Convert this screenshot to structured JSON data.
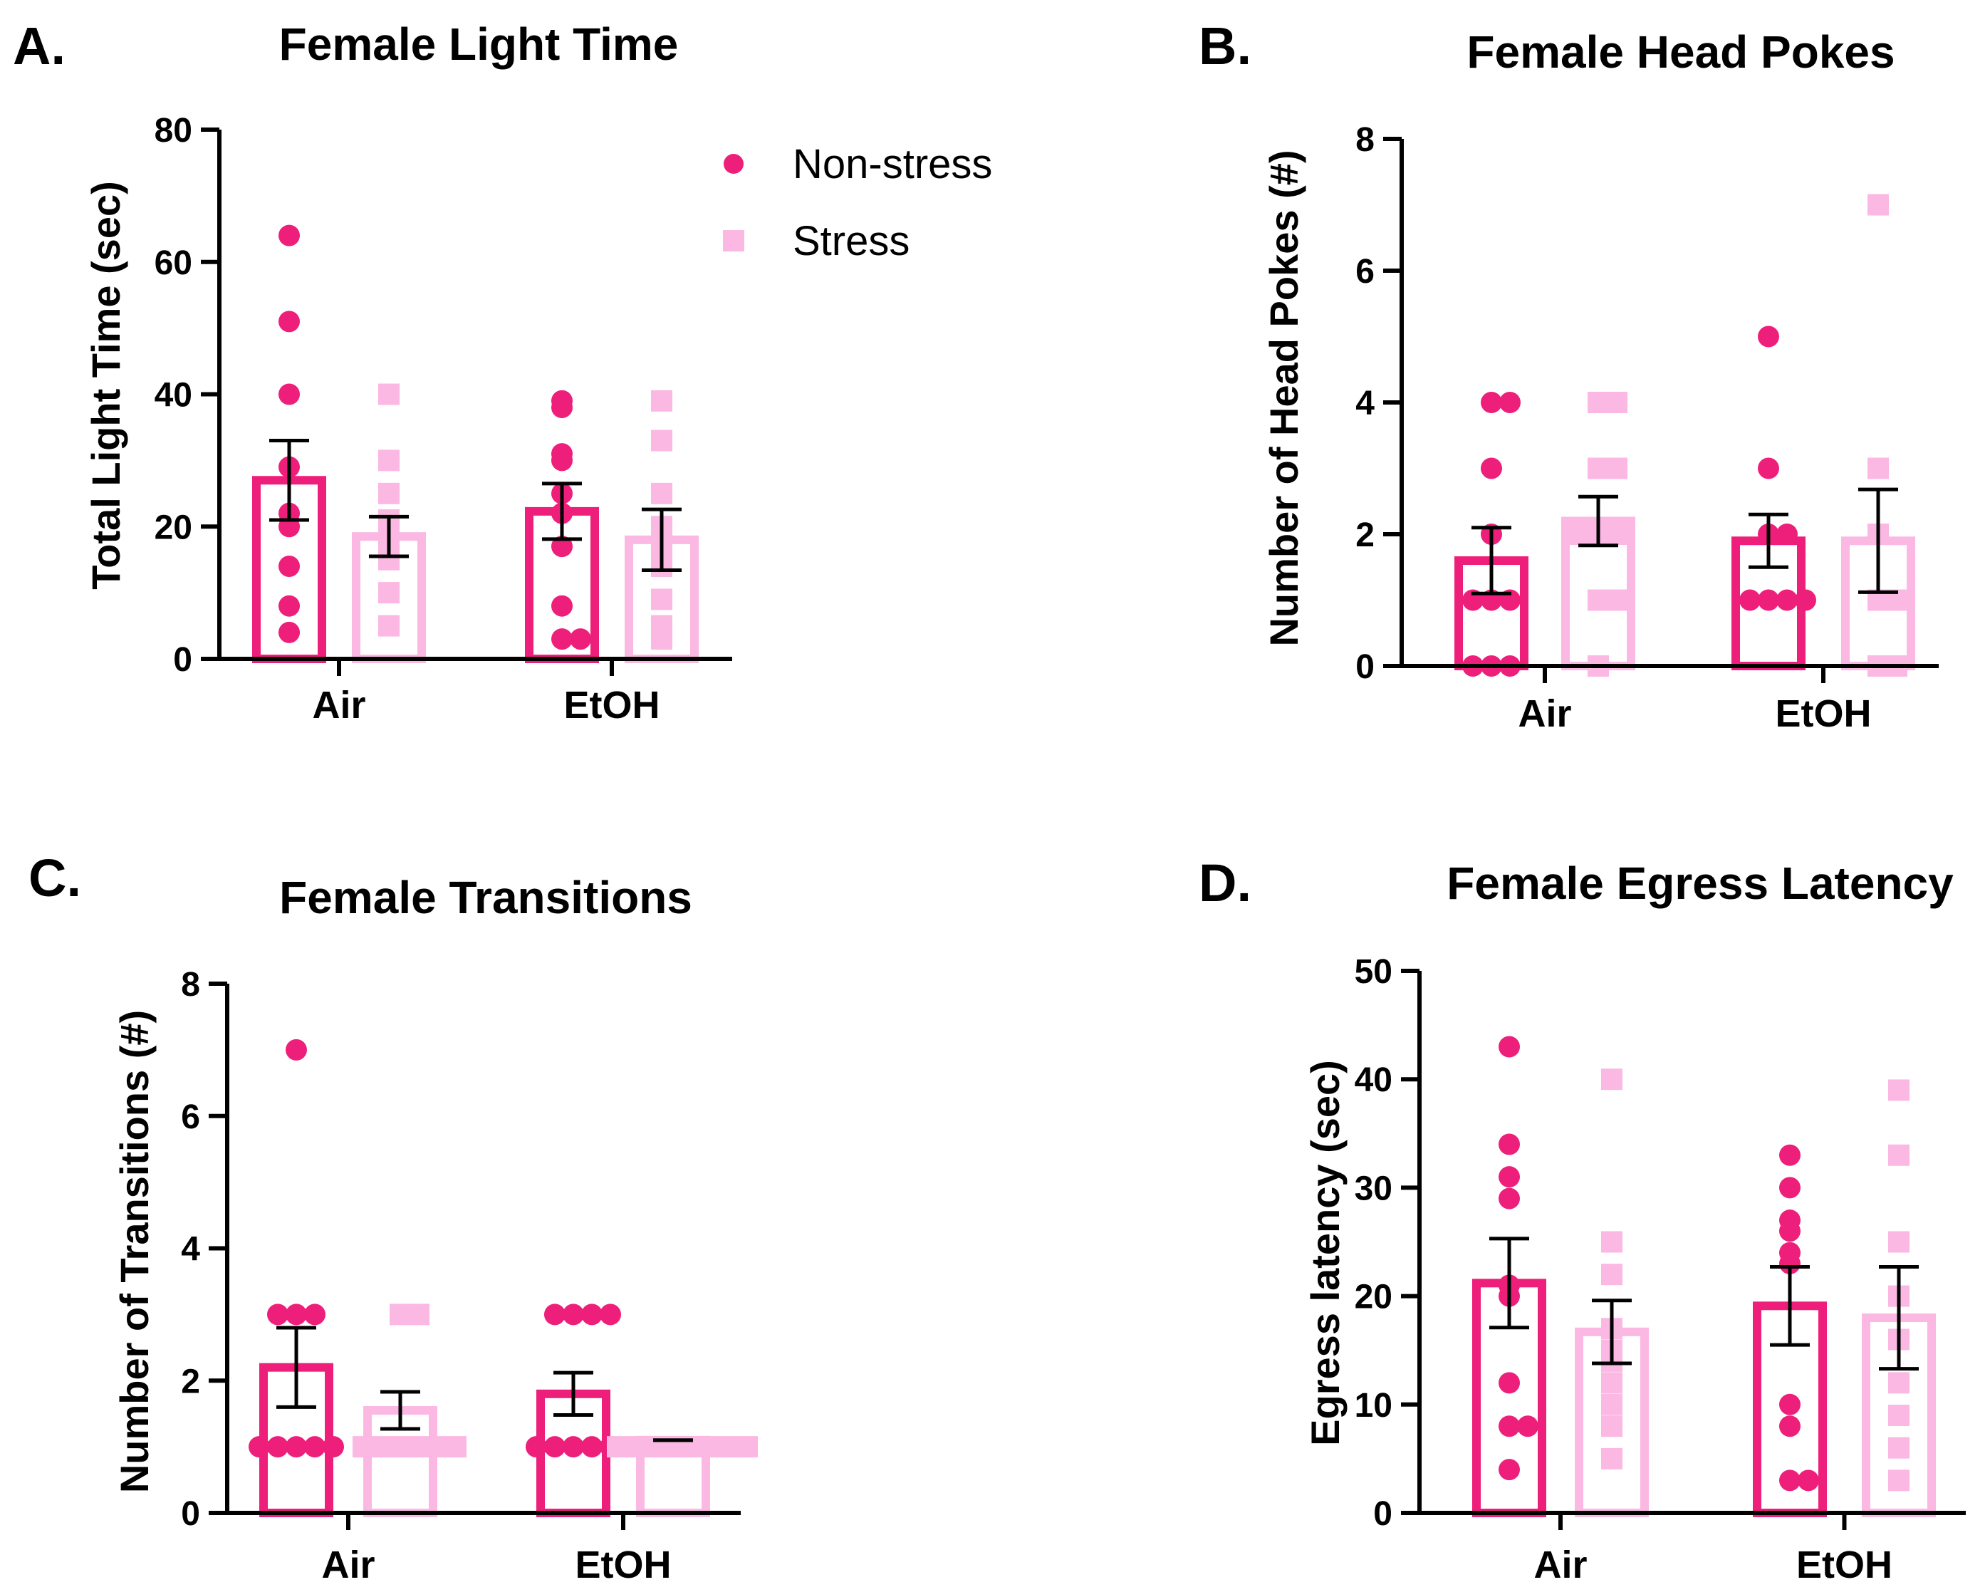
{
  "colors": {
    "nonstress": "#EE1F7A",
    "stress": "#FBB8E3",
    "axis": "#000000",
    "error": "#000000"
  },
  "legend": {
    "items": [
      {
        "label": "Non-stress",
        "shape": "circle",
        "color": "#EE1F7A"
      },
      {
        "label": "Stress",
        "shape": "square",
        "color": "#FBB8E3"
      }
    ]
  },
  "chart_data": [
    {
      "type": "bar",
      "panel": "A.",
      "title": "Female Light Time",
      "xlabel": "",
      "ylabel": "Total Light  Time (sec)",
      "ylim": [
        0,
        80
      ],
      "yticks": [
        "0",
        "20",
        "40",
        "60",
        "80"
      ],
      "categories": [
        "Air",
        "EtOH"
      ],
      "series": [
        {
          "name": "Non-stress",
          "means": [
            27,
            22.3
          ],
          "sem": [
            6,
            4.2
          ],
          "points": [
            [
              64,
              51,
              40,
              29,
              22,
              20,
              14,
              8,
              4
            ],
            [
              39,
              38,
              31,
              30,
              25,
              22,
              17,
              8,
              3,
              3
            ]
          ]
        },
        {
          "name": "Stress",
          "means": [
            18.5,
            18
          ],
          "sem": [
            3,
            4.6
          ],
          "points": [
            [
              40,
              30,
              25,
              21,
              19,
              17,
              16,
              15,
              10,
              5
            ],
            [
              39,
              33,
              25,
              20,
              17,
              14,
              9,
              5,
              3
            ]
          ]
        }
      ]
    },
    {
      "type": "bar",
      "panel": "B.",
      "title": "Female Head Pokes",
      "xlabel": "",
      "ylabel": "Number of Head Pokes (#)",
      "ylim": [
        0,
        8
      ],
      "yticks": [
        "0",
        "2",
        "4",
        "6",
        "8"
      ],
      "categories": [
        "Air",
        "EtOH"
      ],
      "series": [
        {
          "name": "Non-stress",
          "means": [
            1.6,
            1.9
          ],
          "sem": [
            0.5,
            0.4
          ],
          "points": [
            [
              4,
              4,
              3,
              2,
              1,
              1,
              1,
              0,
              0,
              0
            ],
            [
              5,
              3,
              2,
              2,
              1,
              1,
              1,
              1
            ]
          ]
        },
        {
          "name": "Stress",
          "means": [
            2.2,
            1.9
          ],
          "sem": [
            0.37,
            0.78
          ],
          "points": [
            [
              4,
              4,
              3,
              3,
              2,
              2,
              2,
              1,
              1,
              0
            ],
            [
              7,
              3,
              2,
              1,
              1,
              0,
              0
            ]
          ]
        }
      ]
    },
    {
      "type": "bar",
      "panel": "C.",
      "title": "Female Transitions",
      "xlabel": "",
      "ylabel": "Number of Transitions (#)",
      "ylim": [
        0,
        8
      ],
      "yticks": [
        "0",
        "2",
        "4",
        "6",
        "8"
      ],
      "categories": [
        "Air",
        "EtOH"
      ],
      "series": [
        {
          "name": "Non-stress",
          "means": [
            2.2,
            1.8
          ],
          "sem": [
            0.6,
            0.32
          ],
          "points": [
            [
              7,
              3,
              3,
              3,
              1,
              1,
              1,
              1,
              1
            ],
            [
              3,
              3,
              3,
              3,
              1,
              1,
              1,
              1,
              1
            ]
          ]
        },
        {
          "name": "Stress",
          "means": [
            1.55,
            1.1
          ],
          "sem": [
            0.28,
            0.0
          ],
          "points": [
            [
              3,
              3,
              1,
              1,
              1,
              1,
              1,
              1
            ],
            [
              1,
              1,
              1,
              1,
              1,
              1,
              1,
              1
            ]
          ]
        }
      ]
    },
    {
      "type": "bar",
      "panel": "D.",
      "title": "Female Egress Latency",
      "xlabel": "",
      "ylabel": "Egress latency (sec)",
      "ylim": [
        0,
        50
      ],
      "yticks": [
        "0",
        "10",
        "20",
        "30",
        "40",
        "50"
      ],
      "categories": [
        "Air",
        "EtOH"
      ],
      "series": [
        {
          "name": "Non-stress",
          "means": [
            21.2,
            19.1
          ],
          "sem": [
            4.1,
            3.6
          ],
          "points": [
            [
              43,
              34,
              31,
              29,
              21,
              20,
              12,
              8,
              8,
              4
            ],
            [
              33,
              30,
              27,
              26,
              24,
              23,
              10,
              8,
              3,
              3
            ]
          ]
        },
        {
          "name": "Stress",
          "means": [
            16.7,
            18
          ],
          "sem": [
            2.9,
            4.7
          ],
          "points": [
            [
              40,
              25,
              22,
              17,
              15,
              14,
              12,
              10,
              8,
              5
            ],
            [
              39,
              33,
              25,
              20,
              16,
              12,
              9,
              6,
              3
            ]
          ]
        }
      ]
    }
  ]
}
